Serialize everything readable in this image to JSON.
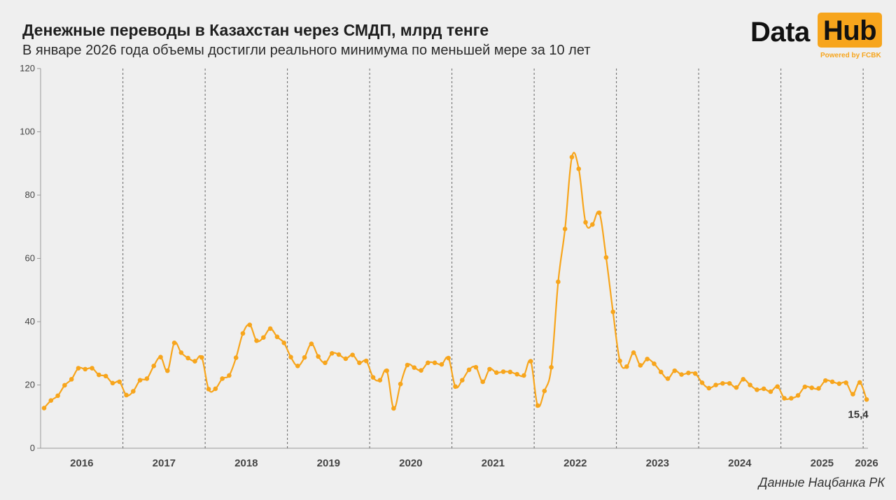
{
  "header": {
    "title": "Денежные переводы в Казахстан через СМДП, млрд тенге",
    "subtitle": "В январе 2026 года объемы достигли реального минимума по меньшей мере за 10 лет"
  },
  "logo": {
    "word_data": "Data",
    "word_hub": "Hub",
    "powered": "Powered by FCBK",
    "accent_color": "#f7a51c"
  },
  "source": "Данные Нацбанка РК",
  "chart_data": {
    "type": "line",
    "x_start": "2016-01",
    "x_end": "2026-01",
    "x_frequency": "monthly",
    "ylim": [
      0,
      120
    ],
    "yticks": [
      0,
      20,
      40,
      60,
      80,
      100,
      120
    ],
    "grid": false,
    "line_color": "#f7a51c",
    "year_labels": [
      "2016",
      "2017",
      "2018",
      "2019",
      "2020",
      "2021",
      "2022",
      "2023",
      "2024",
      "2025",
      "2026"
    ],
    "year_dividers": "dashed",
    "last_value_label": "15,4",
    "series": [
      {
        "values": [
          12.7,
          15.1,
          16.6,
          19.9,
          21.8,
          25.3,
          25.0,
          25.3,
          23.2,
          22.8,
          20.6,
          21.0,
          16.8,
          18.0,
          21.5,
          22.0,
          26.0,
          28.8,
          24.5,
          33.3,
          30.2,
          28.5,
          27.5,
          28.7,
          18.7,
          18.8,
          22.0,
          23.0,
          28.6,
          36.3,
          39.0,
          34.0,
          35.0,
          37.8,
          35.2,
          33.3,
          28.8,
          26.0,
          28.7,
          33.0,
          29.0,
          27.0,
          30.0,
          29.6,
          28.3,
          29.5,
          27.0,
          27.6,
          22.4,
          21.5,
          24.5,
          12.6,
          20.3,
          26.3,
          25.5,
          24.6,
          27.0,
          27.0,
          26.5,
          28.5,
          19.5,
          21.5,
          24.8,
          25.6,
          21.0,
          25.0,
          23.9,
          24.2,
          24.1,
          23.4,
          23.0,
          27.5,
          13.5,
          18.1,
          25.6,
          52.6,
          69.3,
          92.0,
          88.3,
          71.4,
          70.7,
          74.4,
          60.3,
          43.1,
          27.6,
          25.8,
          30.2,
          26.2,
          28.2,
          26.7,
          24.1,
          22.0,
          24.5,
          23.3,
          23.8,
          23.6,
          20.7,
          19.0,
          20.0,
          20.5,
          20.5,
          19.2,
          21.8,
          20.0,
          18.5,
          18.8,
          17.9,
          19.5,
          15.8,
          15.8,
          16.7,
          19.4,
          19.1,
          18.9,
          21.4,
          21.0,
          20.4,
          20.7,
          17.1,
          20.8,
          15.4
        ]
      }
    ]
  }
}
